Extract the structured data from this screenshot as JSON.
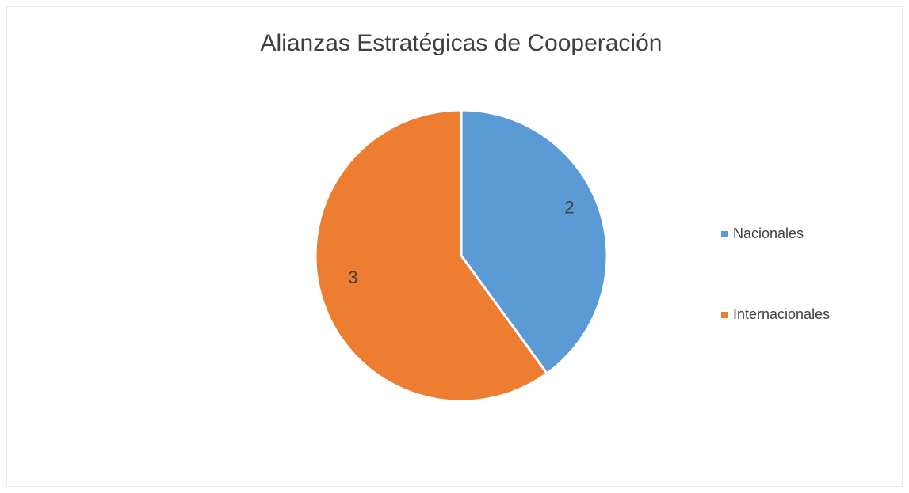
{
  "chart_data": {
    "type": "pie",
    "title": "Alianzas Estratégicas de Cooperación",
    "categories": [
      "Nacionales",
      "Internacionales"
    ],
    "values": [
      2,
      3
    ],
    "colors": [
      "#5b9bd5",
      "#ed7d31"
    ],
    "legend": "right"
  }
}
